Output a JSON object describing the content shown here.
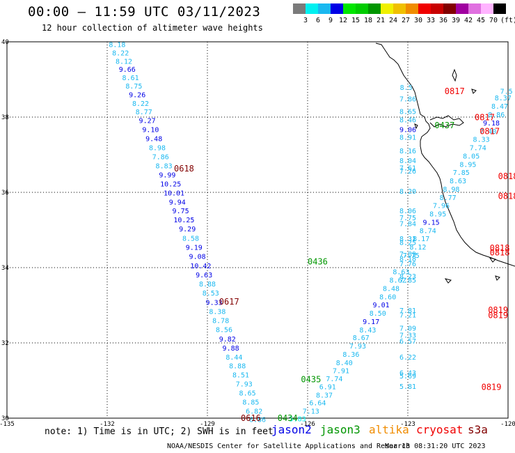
{
  "header": {
    "title": "00:00 – 11:59 UTC 03/11/2023",
    "subtitle": "12 hour collection of altimeter wave heights"
  },
  "legend": {
    "unit": "(ft)",
    "bins": [
      {
        "label": "3",
        "color": "#7b7b7b"
      },
      {
        "label": "6",
        "color": "#00f0f0"
      },
      {
        "label": "9",
        "color": "#1ab8f0"
      },
      {
        "label": "12",
        "color": "#0000e6"
      },
      {
        "label": "15",
        "color": "#00e600"
      },
      {
        "label": "18",
        "color": "#00cc00"
      },
      {
        "label": "21",
        "color": "#009600"
      },
      {
        "label": "24",
        "color": "#f0f000"
      },
      {
        "label": "27",
        "color": "#f0c000"
      },
      {
        "label": "30",
        "color": "#f08c00"
      },
      {
        "label": "33",
        "color": "#f00000"
      },
      {
        "label": "36",
        "color": "#c80000"
      },
      {
        "label": "39",
        "color": "#820000"
      },
      {
        "label": "42",
        "color": "#a000a0"
      },
      {
        "label": "45",
        "color": "#e070e0"
      },
      {
        "label": "70",
        "color": "#ffb4ff"
      },
      {
        "label": "",
        "color": "#000000"
      }
    ]
  },
  "axes": {
    "x_ticks": [
      {
        "lon": -135,
        "label": "-135"
      },
      {
        "lon": -132,
        "label": "-132"
      },
      {
        "lon": -129,
        "label": "-129"
      },
      {
        "lon": -126,
        "label": "-126"
      },
      {
        "lon": -123,
        "label": "-123"
      },
      {
        "lon": -120,
        "label": "-120"
      }
    ],
    "y_ticks": [
      {
        "lat": 40,
        "label": "40"
      },
      {
        "lat": 38,
        "label": "38"
      },
      {
        "lat": 36,
        "label": "36"
      },
      {
        "lat": 34,
        "label": "34"
      },
      {
        "lat": 32,
        "label": "32"
      },
      {
        "lat": 30,
        "label": "30"
      }
    ],
    "lon_range": [
      -135,
      -120
    ],
    "lat_range": [
      30,
      40
    ]
  },
  "tracks": [
    {
      "name": "pass-0616-0618",
      "color": "#1ab8f0",
      "alt": "#0000e6",
      "points": [
        {
          "lon": -131.7,
          "lat": 39.86,
          "v": "8.18",
          "c": "c"
        },
        {
          "lon": -131.6,
          "lat": 39.64,
          "v": "8.22",
          "c": "c"
        },
        {
          "lon": -131.5,
          "lat": 39.42,
          "v": "8.12",
          "c": "c"
        },
        {
          "lon": -131.4,
          "lat": 39.2,
          "v": "9.66",
          "c": "b"
        },
        {
          "lon": -131.3,
          "lat": 38.98,
          "v": "8.61",
          "c": "c"
        },
        {
          "lon": -131.2,
          "lat": 38.76,
          "v": "8.75",
          "c": "c"
        },
        {
          "lon": -131.1,
          "lat": 38.53,
          "v": "9.26",
          "c": "b"
        },
        {
          "lon": -131.0,
          "lat": 38.3,
          "v": "8.22",
          "c": "c"
        },
        {
          "lon": -130.9,
          "lat": 38.07,
          "v": "8.77",
          "c": "c"
        },
        {
          "lon": -130.8,
          "lat": 37.84,
          "v": "9.27",
          "c": "b"
        },
        {
          "lon": -130.7,
          "lat": 37.6,
          "v": "9.10",
          "c": "b"
        },
        {
          "lon": -130.6,
          "lat": 37.36,
          "v": "9.48",
          "c": "b"
        },
        {
          "lon": -130.5,
          "lat": 37.12,
          "v": "8.98",
          "c": "c"
        },
        {
          "lon": -130.4,
          "lat": 36.88,
          "v": "7.86",
          "c": "c"
        },
        {
          "lon": -130.3,
          "lat": 36.64,
          "v": "8.83",
          "c": "c"
        },
        {
          "lon": -130.2,
          "lat": 36.4,
          "v": "9.99",
          "c": "b"
        },
        {
          "lon": -130.1,
          "lat": 36.16,
          "v": "10.25",
          "c": "b"
        },
        {
          "lon": -130.0,
          "lat": 35.92,
          "v": "10.01",
          "c": "b"
        },
        {
          "lon": -129.9,
          "lat": 35.68,
          "v": "9.94",
          "c": "b"
        },
        {
          "lon": -129.8,
          "lat": 35.44,
          "v": "9.75",
          "c": "b"
        },
        {
          "lon": -129.7,
          "lat": 35.2,
          "v": "10.25",
          "c": "b"
        },
        {
          "lon": -129.6,
          "lat": 34.96,
          "v": "9.29",
          "c": "b"
        },
        {
          "lon": -129.5,
          "lat": 34.71,
          "v": "8.58",
          "c": "c"
        },
        {
          "lon": -129.4,
          "lat": 34.47,
          "v": "9.19",
          "c": "b"
        },
        {
          "lon": -129.3,
          "lat": 34.23,
          "v": "9.08",
          "c": "b"
        },
        {
          "lon": -129.2,
          "lat": 33.98,
          "v": "10.42",
          "c": "b"
        },
        {
          "lon": -129.1,
          "lat": 33.74,
          "v": "9.63",
          "c": "b"
        },
        {
          "lon": -129.0,
          "lat": 33.5,
          "v": "8.88",
          "c": "c"
        },
        {
          "lon": -128.9,
          "lat": 33.26,
          "v": "8.53",
          "c": "c"
        },
        {
          "lon": -128.8,
          "lat": 33.01,
          "v": "9.33",
          "c": "b"
        },
        {
          "lon": -128.7,
          "lat": 32.77,
          "v": "8.38",
          "c": "c"
        },
        {
          "lon": -128.6,
          "lat": 32.53,
          "v": "8.78",
          "c": "c"
        },
        {
          "lon": -128.5,
          "lat": 32.29,
          "v": "8.56",
          "c": "c"
        },
        {
          "lon": -128.4,
          "lat": 32.04,
          "v": "9.82",
          "c": "b"
        },
        {
          "lon": -128.3,
          "lat": 31.8,
          "v": "9.88",
          "c": "b"
        },
        {
          "lon": -128.2,
          "lat": 31.56,
          "v": "8.44",
          "c": "c"
        },
        {
          "lon": -128.1,
          "lat": 31.32,
          "v": "8.88",
          "c": "c"
        },
        {
          "lon": -128.0,
          "lat": 31.08,
          "v": "8.51",
          "c": "c"
        },
        {
          "lon": -127.9,
          "lat": 30.84,
          "v": "7.93",
          "c": "c"
        },
        {
          "lon": -127.8,
          "lat": 30.6,
          "v": "8.65",
          "c": "c"
        },
        {
          "lon": -127.7,
          "lat": 30.36,
          "v": "8.85",
          "c": "c"
        },
        {
          "lon": -127.6,
          "lat": 30.12,
          "v": "6.82",
          "c": "c"
        },
        {
          "lon": -127.5,
          "lat": 29.9,
          "v": "6.86",
          "c": "c"
        }
      ]
    },
    {
      "name": "pass-0434-0437",
      "color": "#1ab8f0",
      "alt": "#0000e6",
      "points": [
        {
          "lon": -126.3,
          "lat": 29.92,
          "v": "5.83",
          "c": "x"
        },
        {
          "lon": -125.9,
          "lat": 30.12,
          "v": "7.13",
          "c": "c"
        },
        {
          "lon": -125.7,
          "lat": 30.34,
          "v": "6.64",
          "c": "c"
        },
        {
          "lon": -125.5,
          "lat": 30.55,
          "v": "8.37",
          "c": "c"
        },
        {
          "lon": -125.4,
          "lat": 30.77,
          "v": "6.91",
          "c": "c"
        },
        {
          "lon": -125.2,
          "lat": 30.98,
          "v": "7.74",
          "c": "c"
        },
        {
          "lon": -125.0,
          "lat": 31.19,
          "v": "7.91",
          "c": "c"
        },
        {
          "lon": -124.9,
          "lat": 31.41,
          "v": "8.40",
          "c": "c"
        },
        {
          "lon": -124.7,
          "lat": 31.63,
          "v": "8.36",
          "c": "c"
        },
        {
          "lon": -124.5,
          "lat": 31.85,
          "v": "7.93",
          "c": "c"
        },
        {
          "lon": -124.4,
          "lat": 32.07,
          "v": "8.67",
          "c": "c"
        },
        {
          "lon": -124.2,
          "lat": 32.28,
          "v": "8.43",
          "c": "c"
        },
        {
          "lon": -124.1,
          "lat": 32.5,
          "v": "9.17",
          "c": "b"
        },
        {
          "lon": -123.9,
          "lat": 32.72,
          "v": "8.50",
          "c": "c"
        },
        {
          "lon": -123.8,
          "lat": 32.94,
          "v": "9.01",
          "c": "b"
        },
        {
          "lon": -123.6,
          "lat": 33.16,
          "v": "8.60",
          "c": "c"
        },
        {
          "lon": -123.5,
          "lat": 33.38,
          "v": "8.48",
          "c": "c"
        },
        {
          "lon": -123.3,
          "lat": 33.6,
          "v": "8.62",
          "c": "c"
        },
        {
          "lon": -123.2,
          "lat": 33.82,
          "v": "8.63",
          "c": "c"
        },
        {
          "lon": -123.0,
          "lat": 34.04,
          "v": "7.76",
          "c": "c"
        },
        {
          "lon": -122.9,
          "lat": 34.26,
          "v": "7.75",
          "c": "c"
        },
        {
          "lon": -122.7,
          "lat": 34.48,
          "v": "8.12",
          "c": "c"
        },
        {
          "lon": -122.6,
          "lat": 34.7,
          "v": "8.17",
          "c": "c"
        },
        {
          "lon": -122.4,
          "lat": 34.92,
          "v": "8.74",
          "c": "c"
        },
        {
          "lon": -122.3,
          "lat": 35.14,
          "v": "9.15",
          "c": "b"
        },
        {
          "lon": -122.1,
          "lat": 35.36,
          "v": "8.95",
          "c": "c"
        },
        {
          "lon": -122.0,
          "lat": 35.58,
          "v": "7.96",
          "c": "c"
        },
        {
          "lon": -121.8,
          "lat": 35.8,
          "v": "8.77",
          "c": "c"
        },
        {
          "lon": -121.7,
          "lat": 36.02,
          "v": "8.98",
          "c": "c"
        },
        {
          "lon": -121.5,
          "lat": 36.24,
          "v": "8.63",
          "c": "c"
        },
        {
          "lon": -121.4,
          "lat": 36.46,
          "v": "7.85",
          "c": "c"
        },
        {
          "lon": -121.2,
          "lat": 36.68,
          "v": "8.95",
          "c": "c"
        },
        {
          "lon": -121.1,
          "lat": 36.9,
          "v": "8.05",
          "c": "c"
        },
        {
          "lon": -120.9,
          "lat": 37.12,
          "v": "7.74",
          "c": "c"
        },
        {
          "lon": -120.8,
          "lat": 37.34,
          "v": "8.33",
          "c": "c"
        },
        {
          "lon": -120.6,
          "lat": 37.56,
          "v": "7.40",
          "c": "c"
        },
        {
          "lon": -120.5,
          "lat": 37.78,
          "v": "9.18",
          "c": "b"
        },
        {
          "lon": -120.35,
          "lat": 38.0,
          "v": "8.86",
          "c": "c"
        },
        {
          "lon": -120.25,
          "lat": 38.22,
          "v": "8.47",
          "c": "c"
        },
        {
          "lon": -120.15,
          "lat": 38.44,
          "v": "8.37",
          "c": "c"
        },
        {
          "lon": -120.05,
          "lat": 38.62,
          "v": "7.5",
          "c": "c"
        }
      ]
    },
    {
      "name": "pass-0817-0819",
      "color": "#1ab8f0",
      "alt": "#0000e6",
      "points": [
        {
          "lon": -123.05,
          "lat": 38.72,
          "v": "8.5",
          "c": "c"
        },
        {
          "lon": -123.0,
          "lat": 38.42,
          "v": "7.86",
          "c": "c"
        },
        {
          "lon": -123.0,
          "lat": 38.08,
          "v": "8.65",
          "c": "c"
        },
        {
          "lon": -123.0,
          "lat": 37.86,
          "v": "8.46",
          "c": "c"
        },
        {
          "lon": -123.0,
          "lat": 37.6,
          "v": "9.06",
          "c": "b"
        },
        {
          "lon": -123.0,
          "lat": 37.4,
          "v": "8.91",
          "c": "c"
        },
        {
          "lon": -123.0,
          "lat": 37.04,
          "v": "8.16",
          "c": "c"
        },
        {
          "lon": -123.0,
          "lat": 36.78,
          "v": "8.04",
          "c": "c"
        },
        {
          "lon": -123.0,
          "lat": 36.58,
          "v": "7.61",
          "c": "c"
        },
        {
          "lon": -123.0,
          "lat": 36.5,
          "v": "7.26",
          "c": "c"
        },
        {
          "lon": -123.0,
          "lat": 35.96,
          "v": "8.20",
          "c": "c"
        },
        {
          "lon": -123.0,
          "lat": 35.44,
          "v": "8.06",
          "c": "c"
        },
        {
          "lon": -123.0,
          "lat": 35.26,
          "v": "7.75",
          "c": "c"
        },
        {
          "lon": -123.0,
          "lat": 35.1,
          "v": "7.84",
          "c": "c"
        },
        {
          "lon": -123.0,
          "lat": 34.7,
          "v": "8.31",
          "c": "c"
        },
        {
          "lon": -123.0,
          "lat": 34.6,
          "v": "8.25",
          "c": "c"
        },
        {
          "lon": -123.0,
          "lat": 34.3,
          "v": "7.89",
          "c": "c"
        },
        {
          "lon": -123.0,
          "lat": 34.18,
          "v": "8.18",
          "c": "c"
        },
        {
          "lon": -123.0,
          "lat": 33.7,
          "v": "8.23",
          "c": "c"
        },
        {
          "lon": -123.0,
          "lat": 33.6,
          "v": "7.85",
          "c": "c"
        },
        {
          "lon": -123.0,
          "lat": 32.8,
          "v": "7.81",
          "c": "c"
        },
        {
          "lon": -123.0,
          "lat": 32.68,
          "v": "7.21",
          "c": "c"
        },
        {
          "lon": -123.0,
          "lat": 32.32,
          "v": "7.09",
          "c": "c"
        },
        {
          "lon": -123.0,
          "lat": 32.14,
          "v": "7.33",
          "c": "c"
        },
        {
          "lon": -123.0,
          "lat": 31.98,
          "v": "6.57",
          "c": "c"
        },
        {
          "lon": -123.0,
          "lat": 31.56,
          "v": "6.22",
          "c": "c"
        },
        {
          "lon": -123.0,
          "lat": 31.14,
          "v": "6.43",
          "c": "c"
        },
        {
          "lon": -123.0,
          "lat": 31.06,
          "v": "5.69",
          "c": "c"
        },
        {
          "lon": -123.0,
          "lat": 30.78,
          "v": "5.81",
          "c": "c"
        }
      ]
    }
  ],
  "time_labels": [
    {
      "text": "0616",
      "color": "#820000",
      "lon": -128.0,
      "lat": 29.93
    },
    {
      "text": "0617",
      "color": "#820000",
      "lon": -128.65,
      "lat": 33.02
    },
    {
      "text": "0618",
      "color": "#820000",
      "lon": -130.0,
      "lat": 36.56
    },
    {
      "text": "0434",
      "color": "#009600",
      "lon": -126.9,
      "lat": 29.93
    },
    {
      "text": "0435",
      "color": "#009600",
      "lon": -126.2,
      "lat": 30.95
    },
    {
      "text": "0436",
      "color": "#009600",
      "lon": -126.0,
      "lat": 34.08
    },
    {
      "text": "0437",
      "color": "#009600",
      "lon": -122.2,
      "lat": 37.7
    },
    {
      "text": "0817",
      "color": "#f00000",
      "lon": -121.9,
      "lat": 38.61
    },
    {
      "text": "0817",
      "color": "#f00000",
      "lon": -121.0,
      "lat": 37.92
    },
    {
      "text": "0817",
      "color": "#f00000",
      "lon": -120.85,
      "lat": 37.55
    },
    {
      "text": "0818",
      "color": "#f00000",
      "lon": -120.3,
      "lat": 36.35
    },
    {
      "text": "0818",
      "color": "#f00000",
      "lon": -120.3,
      "lat": 35.82
    },
    {
      "text": "0818",
      "color": "#f00000",
      "lon": -120.55,
      "lat": 34.44
    },
    {
      "text": "0818",
      "color": "#f00000",
      "lon": -120.55,
      "lat": 34.32
    },
    {
      "text": "0819",
      "color": "#f00000",
      "lon": -120.6,
      "lat": 32.8
    },
    {
      "text": "0819",
      "color": "#f00000",
      "lon": -120.6,
      "lat": 32.66
    },
    {
      "text": "0819",
      "color": "#f00000",
      "lon": -120.8,
      "lat": 30.75
    }
  ],
  "footer": {
    "note": "note: 1) Time is in UTC; 2) SWH is in feet",
    "missions": [
      {
        "name": "jason2",
        "color": "#0000e6"
      },
      {
        "name": "jason3",
        "color": "#009600"
      },
      {
        "name": "altika",
        "color": "#f08c00"
      },
      {
        "name": "cryosat",
        "color": "#f00000"
      },
      {
        "name": "s3a",
        "color": "#820000"
      }
    ],
    "credit": "NOAA/NESDIS Center for Satellite Applications and Research",
    "timestamp": "Mar 13 08:31:20 UTC 2023"
  }
}
